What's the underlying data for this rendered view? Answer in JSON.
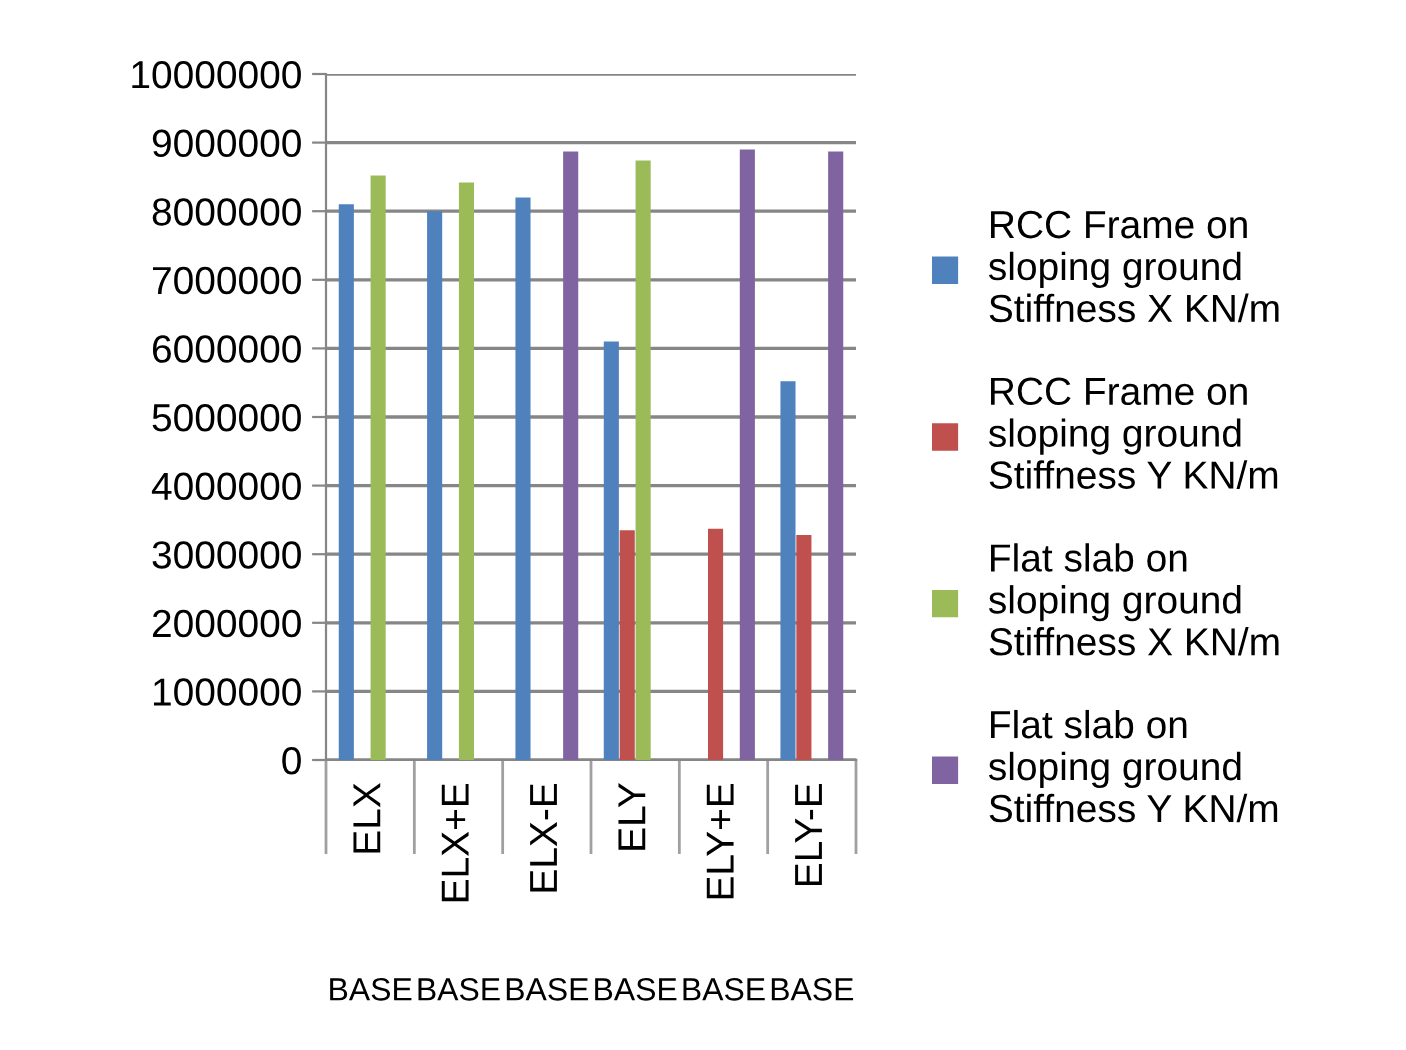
{
  "chart_data": {
    "type": "bar",
    "categories": [
      "ELX",
      "ELX+E",
      "ELX-E",
      "ELY",
      "ELY+E",
      "ELY-E"
    ],
    "series": [
      {
        "name": "RCC Frame on\nsloping ground\nStiffness X KN/m",
        "color": "#4f81bd",
        "values": [
          8100000,
          8000000,
          8200000,
          6100000,
          null,
          5520000
        ]
      },
      {
        "name": "RCC Frame on\nsloping ground\nStiffness Y KN/m",
        "color": "#c0504d",
        "values": [
          null,
          null,
          null,
          3350000,
          3370000,
          3280000
        ]
      },
      {
        "name": "Flat slab on\nsloping ground\nStiffness X KN/m",
        "color": "#9bbb59",
        "values": [
          8520000,
          8420000,
          null,
          8740000,
          null,
          null
        ]
      },
      {
        "name": "Flat slab on\nsloping ground\nStiffness Y KN/m",
        "color": "#8064a2",
        "values": [
          null,
          null,
          8870000,
          null,
          8900000,
          8870000
        ]
      }
    ],
    "ylim": [
      0,
      10000000
    ],
    "yticks": [
      0,
      1000000,
      2000000,
      3000000,
      4000000,
      5000000,
      6000000,
      7000000,
      8000000,
      9000000,
      10000000
    ],
    "grid": "y",
    "legend": "right",
    "annotations": [
      "BASE",
      "BASE",
      "BASE",
      "BASE",
      "BASE",
      "BASE"
    ]
  }
}
